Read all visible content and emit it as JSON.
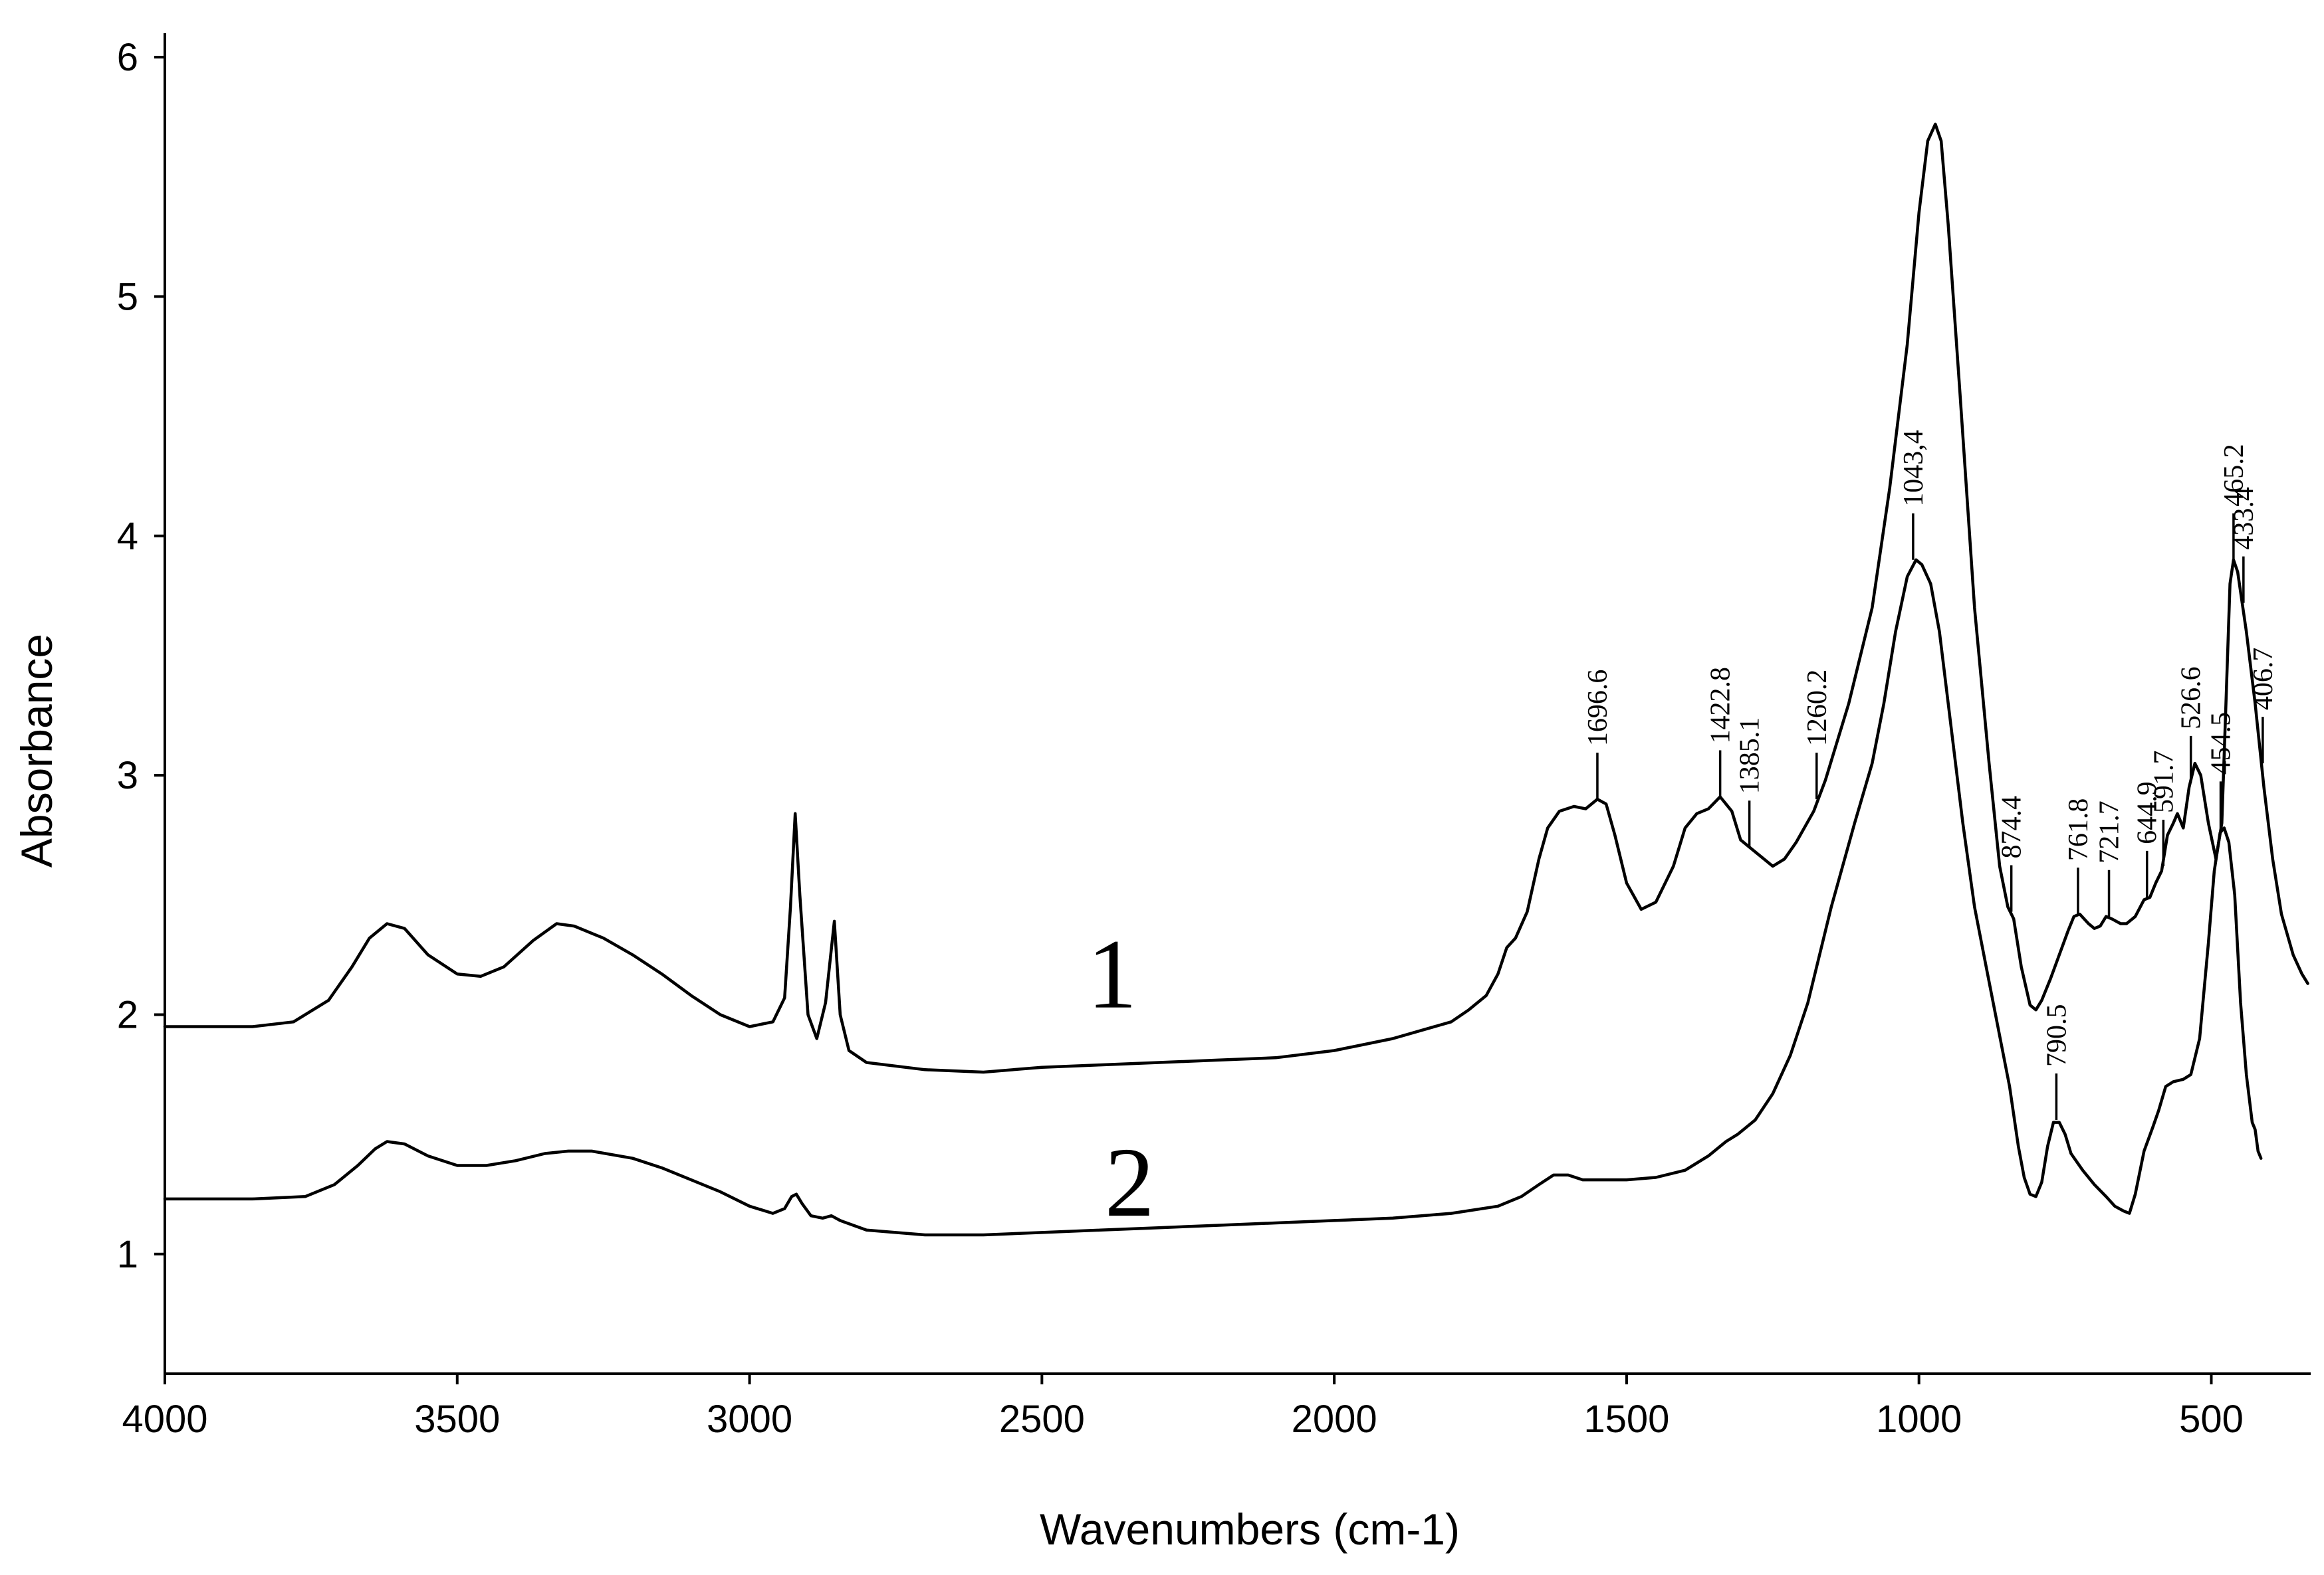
{
  "chart_data": {
    "type": "line",
    "xlabel": "Wavenumbers (cm-1)",
    "ylabel": "Absorbance",
    "xlim": [
      4000,
      330
    ],
    "ylim": [
      0.5,
      6.1
    ],
    "x_ticks": [
      4000,
      3500,
      3000,
      2500,
      2000,
      1500,
      1000,
      500
    ],
    "y_ticks": [
      1,
      2,
      3,
      4,
      5,
      6
    ],
    "grid": false,
    "series": [
      {
        "name": "1",
        "label_at": [
          2380,
          2.03
        ],
        "points": [
          [
            4000,
            1.95
          ],
          [
            3850,
            1.95
          ],
          [
            3780,
            1.97
          ],
          [
            3720,
            2.06
          ],
          [
            3680,
            2.2
          ],
          [
            3650,
            2.32
          ],
          [
            3620,
            2.38
          ],
          [
            3590,
            2.36
          ],
          [
            3550,
            2.25
          ],
          [
            3500,
            2.17
          ],
          [
            3460,
            2.16
          ],
          [
            3420,
            2.2
          ],
          [
            3370,
            2.31
          ],
          [
            3330,
            2.38
          ],
          [
            3300,
            2.37
          ],
          [
            3250,
            2.32
          ],
          [
            3200,
            2.25
          ],
          [
            3150,
            2.17
          ],
          [
            3100,
            2.08
          ],
          [
            3050,
            2.0
          ],
          [
            3000,
            1.95
          ],
          [
            2960,
            1.97
          ],
          [
            2940,
            2.07
          ],
          [
            2930,
            2.45
          ],
          [
            2922,
            2.84
          ],
          [
            2914,
            2.5
          ],
          [
            2900,
            2.0
          ],
          [
            2885,
            1.9
          ],
          [
            2870,
            2.05
          ],
          [
            2855,
            2.39
          ],
          [
            2845,
            2.0
          ],
          [
            2830,
            1.85
          ],
          [
            2800,
            1.8
          ],
          [
            2700,
            1.77
          ],
          [
            2600,
            1.76
          ],
          [
            2500,
            1.78
          ],
          [
            2400,
            1.79
          ],
          [
            2300,
            1.8
          ],
          [
            2200,
            1.81
          ],
          [
            2100,
            1.82
          ],
          [
            2000,
            1.85
          ],
          [
            1900,
            1.9
          ],
          [
            1800,
            1.97
          ],
          [
            1770,
            2.02
          ],
          [
            1740,
            2.08
          ],
          [
            1720,
            2.17
          ],
          [
            1705,
            2.28
          ],
          [
            1690,
            2.32
          ],
          [
            1670,
            2.43
          ],
          [
            1650,
            2.65
          ],
          [
            1635,
            2.78
          ],
          [
            1615,
            2.85
          ],
          [
            1590,
            2.87
          ],
          [
            1570,
            2.86
          ],
          [
            1550,
            2.9
          ],
          [
            1535,
            2.88
          ],
          [
            1520,
            2.75
          ],
          [
            1500,
            2.55
          ],
          [
            1475,
            2.44
          ],
          [
            1450,
            2.47
          ],
          [
            1420,
            2.62
          ],
          [
            1400,
            2.78
          ],
          [
            1380,
            2.84
          ],
          [
            1360,
            2.86
          ],
          [
            1340,
            2.91
          ],
          [
            1320,
            2.85
          ],
          [
            1305,
            2.73
          ],
          [
            1290,
            2.7
          ],
          [
            1270,
            2.66
          ],
          [
            1250,
            2.62
          ],
          [
            1230,
            2.65
          ],
          [
            1210,
            2.72
          ],
          [
            1180,
            2.85
          ],
          [
            1160,
            2.98
          ],
          [
            1120,
            3.3
          ],
          [
            1080,
            3.7
          ],
          [
            1050,
            4.2
          ],
          [
            1020,
            4.8
          ],
          [
            1000,
            5.35
          ],
          [
            985,
            5.65
          ],
          [
            972,
            5.72
          ],
          [
            962,
            5.65
          ],
          [
            950,
            5.3
          ],
          [
            930,
            4.6
          ],
          [
            905,
            3.7
          ],
          [
            880,
            3.05
          ],
          [
            862,
            2.62
          ],
          [
            848,
            2.45
          ],
          [
            838,
            2.4
          ],
          [
            825,
            2.2
          ],
          [
            810,
            2.04
          ],
          [
            800,
            2.02
          ],
          [
            790,
            2.06
          ],
          [
            775,
            2.15
          ],
          [
            760,
            2.25
          ],
          [
            745,
            2.35
          ],
          [
            735,
            2.41
          ],
          [
            725,
            2.42
          ],
          [
            710,
            2.38
          ],
          [
            700,
            2.36
          ],
          [
            690,
            2.37
          ],
          [
            680,
            2.41
          ],
          [
            670,
            2.4
          ],
          [
            655,
            2.38
          ],
          [
            645,
            2.38
          ],
          [
            630,
            2.41
          ],
          [
            615,
            2.48
          ],
          [
            605,
            2.49
          ],
          [
            595,
            2.55
          ],
          [
            585,
            2.6
          ],
          [
            575,
            2.75
          ],
          [
            565,
            2.8
          ],
          [
            558,
            2.84
          ],
          [
            548,
            2.78
          ],
          [
            538,
            2.95
          ],
          [
            528,
            3.05
          ],
          [
            518,
            3.0
          ],
          [
            505,
            2.8
          ],
          [
            492,
            2.65
          ],
          [
            482,
            2.8
          ],
          [
            475,
            3.3
          ],
          [
            468,
            3.8
          ],
          [
            462,
            3.9
          ],
          [
            455,
            3.85
          ],
          [
            440,
            3.6
          ],
          [
            425,
            3.3
          ],
          [
            410,
            2.95
          ],
          [
            395,
            2.65
          ],
          [
            380,
            2.42
          ],
          [
            360,
            2.25
          ],
          [
            345,
            2.17
          ],
          [
            335,
            2.13
          ]
        ]
      },
      {
        "name": "2",
        "label_at": [
          2350,
          1.16
        ],
        "points": [
          [
            4000,
            1.23
          ],
          [
            3850,
            1.23
          ],
          [
            3760,
            1.24
          ],
          [
            3710,
            1.29
          ],
          [
            3670,
            1.37
          ],
          [
            3640,
            1.44
          ],
          [
            3620,
            1.47
          ],
          [
            3590,
            1.46
          ],
          [
            3550,
            1.41
          ],
          [
            3500,
            1.37
          ],
          [
            3450,
            1.37
          ],
          [
            3400,
            1.39
          ],
          [
            3350,
            1.42
          ],
          [
            3310,
            1.43
          ],
          [
            3270,
            1.43
          ],
          [
            3200,
            1.4
          ],
          [
            3150,
            1.36
          ],
          [
            3100,
            1.31
          ],
          [
            3050,
            1.26
          ],
          [
            3000,
            1.2
          ],
          [
            2960,
            1.17
          ],
          [
            2940,
            1.19
          ],
          [
            2928,
            1.24
          ],
          [
            2920,
            1.25
          ],
          [
            2910,
            1.21
          ],
          [
            2895,
            1.16
          ],
          [
            2875,
            1.15
          ],
          [
            2860,
            1.16
          ],
          [
            2845,
            1.14
          ],
          [
            2800,
            1.1
          ],
          [
            2700,
            1.08
          ],
          [
            2600,
            1.08
          ],
          [
            2500,
            1.09
          ],
          [
            2400,
            1.1
          ],
          [
            2300,
            1.11
          ],
          [
            2200,
            1.12
          ],
          [
            2100,
            1.13
          ],
          [
            2000,
            1.14
          ],
          [
            1900,
            1.15
          ],
          [
            1800,
            1.17
          ],
          [
            1720,
            1.2
          ],
          [
            1680,
            1.24
          ],
          [
            1650,
            1.29
          ],
          [
            1625,
            1.33
          ],
          [
            1600,
            1.33
          ],
          [
            1575,
            1.31
          ],
          [
            1540,
            1.31
          ],
          [
            1500,
            1.31
          ],
          [
            1450,
            1.32
          ],
          [
            1400,
            1.35
          ],
          [
            1360,
            1.41
          ],
          [
            1330,
            1.47
          ],
          [
            1310,
            1.5
          ],
          [
            1280,
            1.56
          ],
          [
            1250,
            1.67
          ],
          [
            1220,
            1.83
          ],
          [
            1190,
            2.05
          ],
          [
            1150,
            2.45
          ],
          [
            1110,
            2.8
          ],
          [
            1080,
            3.05
          ],
          [
            1060,
            3.3
          ],
          [
            1040,
            3.6
          ],
          [
            1020,
            3.83
          ],
          [
            1005,
            3.9
          ],
          [
            995,
            3.88
          ],
          [
            980,
            3.8
          ],
          [
            965,
            3.6
          ],
          [
            945,
            3.2
          ],
          [
            925,
            2.8
          ],
          [
            905,
            2.45
          ],
          [
            885,
            2.2
          ],
          [
            865,
            1.95
          ],
          [
            845,
            1.7
          ],
          [
            830,
            1.45
          ],
          [
            820,
            1.32
          ],
          [
            810,
            1.25
          ],
          [
            800,
            1.24
          ],
          [
            790,
            1.3
          ],
          [
            780,
            1.45
          ],
          [
            770,
            1.55
          ],
          [
            760,
            1.55
          ],
          [
            750,
            1.5
          ],
          [
            740,
            1.42
          ],
          [
            720,
            1.35
          ],
          [
            700,
            1.29
          ],
          [
            680,
            1.24
          ],
          [
            665,
            1.2
          ],
          [
            650,
            1.18
          ],
          [
            640,
            1.17
          ],
          [
            630,
            1.25
          ],
          [
            615,
            1.43
          ],
          [
            600,
            1.53
          ],
          [
            590,
            1.6
          ],
          [
            578,
            1.7
          ],
          [
            565,
            1.72
          ],
          [
            548,
            1.73
          ],
          [
            535,
            1.75
          ],
          [
            520,
            1.9
          ],
          [
            505,
            2.3
          ],
          [
            495,
            2.6
          ],
          [
            485,
            2.76
          ],
          [
            478,
            2.78
          ],
          [
            470,
            2.72
          ],
          [
            460,
            2.5
          ],
          [
            450,
            2.05
          ],
          [
            440,
            1.75
          ],
          [
            430,
            1.55
          ],
          [
            425,
            1.52
          ],
          [
            420,
            1.43
          ],
          [
            415,
            1.4
          ]
        ]
      }
    ],
    "annotations": [
      {
        "label": "1696.6",
        "x": 1550,
        "y": 2.9
      },
      {
        "label": "1422.8",
        "x": 1340,
        "y": 2.91
      },
      {
        "label": "1385.1",
        "x": 1290,
        "y": 2.7
      },
      {
        "label": "1260.2",
        "x": 1175,
        "y": 2.9
      },
      {
        "label": "1043,4",
        "x": 1010,
        "y": 3.9
      },
      {
        "label": "874.4",
        "x": 842,
        "y": 2.43
      },
      {
        "label": "761.8",
        "x": 728,
        "y": 2.42
      },
      {
        "label": "721.7",
        "x": 675,
        "y": 2.41
      },
      {
        "label": "644.9",
        "x": 610,
        "y": 2.49
      },
      {
        "label": "591.7",
        "x": 582,
        "y": 2.62
      },
      {
        "label": "526.6",
        "x": 535,
        "y": 2.97
      },
      {
        "label": "465.2",
        "x": 462,
        "y": 3.9
      },
      {
        "label": "433.4",
        "x": 445,
        "y": 3.72
      },
      {
        "label": "406.7",
        "x": 412,
        "y": 3.05
      },
      {
        "label": "790.5",
        "x": 765,
        "y": 1.56
      },
      {
        "label": "454.5",
        "x": 484,
        "y": 2.78
      }
    ]
  }
}
